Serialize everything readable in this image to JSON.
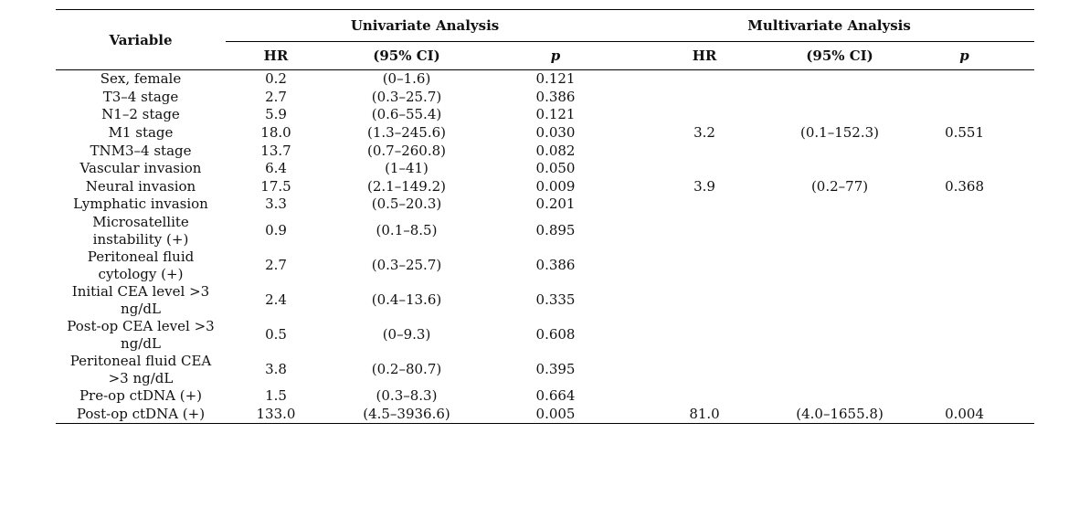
{
  "table": {
    "header": {
      "variable": "Variable",
      "univariate": "Univariate Analysis",
      "multivariate": "Multivariate Analysis",
      "hr": "HR",
      "ci": "(95% CI)",
      "p": "p"
    },
    "rows": [
      {
        "variable": "Sex, female",
        "uni_hr": "0.2",
        "uni_ci": "(0–1.6)",
        "uni_p": "0.121",
        "multi_hr": "",
        "multi_ci": "",
        "multi_p": ""
      },
      {
        "variable": "T3–4 stage",
        "uni_hr": "2.7",
        "uni_ci": "(0.3–25.7)",
        "uni_p": "0.386",
        "multi_hr": "",
        "multi_ci": "",
        "multi_p": ""
      },
      {
        "variable": "N1–2 stage",
        "uni_hr": "5.9",
        "uni_ci": "(0.6–55.4)",
        "uni_p": "0.121",
        "multi_hr": "",
        "multi_ci": "",
        "multi_p": ""
      },
      {
        "variable": "M1 stage",
        "uni_hr": "18.0",
        "uni_ci": "(1.3–245.6)",
        "uni_p": "0.030",
        "multi_hr": "3.2",
        "multi_ci": "(0.1–152.3)",
        "multi_p": "0.551"
      },
      {
        "variable": "TNM3–4 stage",
        "uni_hr": "13.7",
        "uni_ci": "(0.7–260.8)",
        "uni_p": "0.082",
        "multi_hr": "",
        "multi_ci": "",
        "multi_p": ""
      },
      {
        "variable": "Vascular invasion",
        "uni_hr": "6.4",
        "uni_ci": "(1–41)",
        "uni_p": "0.050",
        "multi_hr": "",
        "multi_ci": "",
        "multi_p": ""
      },
      {
        "variable": "Neural invasion",
        "uni_hr": "17.5",
        "uni_ci": "(2.1–149.2)",
        "uni_p": "0.009",
        "multi_hr": "3.9",
        "multi_ci": "(0.2–77)",
        "multi_p": "0.368"
      },
      {
        "variable": "Lymphatic invasion",
        "uni_hr": "3.3",
        "uni_ci": "(0.5–20.3)",
        "uni_p": "0.201",
        "multi_hr": "",
        "multi_ci": "",
        "multi_p": ""
      },
      {
        "variable": "Microsatellite",
        "variable_2": "instability (+)",
        "uni_hr": "0.9",
        "uni_ci": "(0.1–8.5)",
        "uni_p": "0.895",
        "multi_hr": "",
        "multi_ci": "",
        "multi_p": ""
      },
      {
        "variable": "Peritoneal fluid",
        "variable_2": "cytology (+)",
        "uni_hr": "2.7",
        "uni_ci": "(0.3–25.7)",
        "uni_p": "0.386",
        "multi_hr": "",
        "multi_ci": "",
        "multi_p": ""
      },
      {
        "variable": "Initial CEA level >3",
        "variable_2": "ng/dL",
        "uni_hr": "2.4",
        "uni_ci": "(0.4–13.6)",
        "uni_p": "0.335",
        "multi_hr": "",
        "multi_ci": "",
        "multi_p": ""
      },
      {
        "variable": "Post-op CEA level >3",
        "variable_2": "ng/dL",
        "uni_hr": "0.5",
        "uni_ci": "(0–9.3)",
        "uni_p": "0.608",
        "multi_hr": "",
        "multi_ci": "",
        "multi_p": ""
      },
      {
        "variable": "Peritoneal fluid CEA",
        "variable_2": ">3 ng/dL",
        "uni_hr": "3.8",
        "uni_ci": "(0.2–80.7)",
        "uni_p": "0.395",
        "multi_hr": "",
        "multi_ci": "",
        "multi_p": ""
      },
      {
        "variable": "Pre-op ctDNA (+)",
        "uni_hr": "1.5",
        "uni_ci": "(0.3–8.3)",
        "uni_p": "0.664",
        "multi_hr": "",
        "multi_ci": "",
        "multi_p": ""
      },
      {
        "variable": "Post-op ctDNA (+)",
        "uni_hr": "133.0",
        "uni_ci": "(4.5–3936.6)",
        "uni_p": "0.005",
        "multi_hr": "81.0",
        "multi_ci": "(4.0–1655.8)",
        "multi_p": "0.004"
      }
    ]
  }
}
